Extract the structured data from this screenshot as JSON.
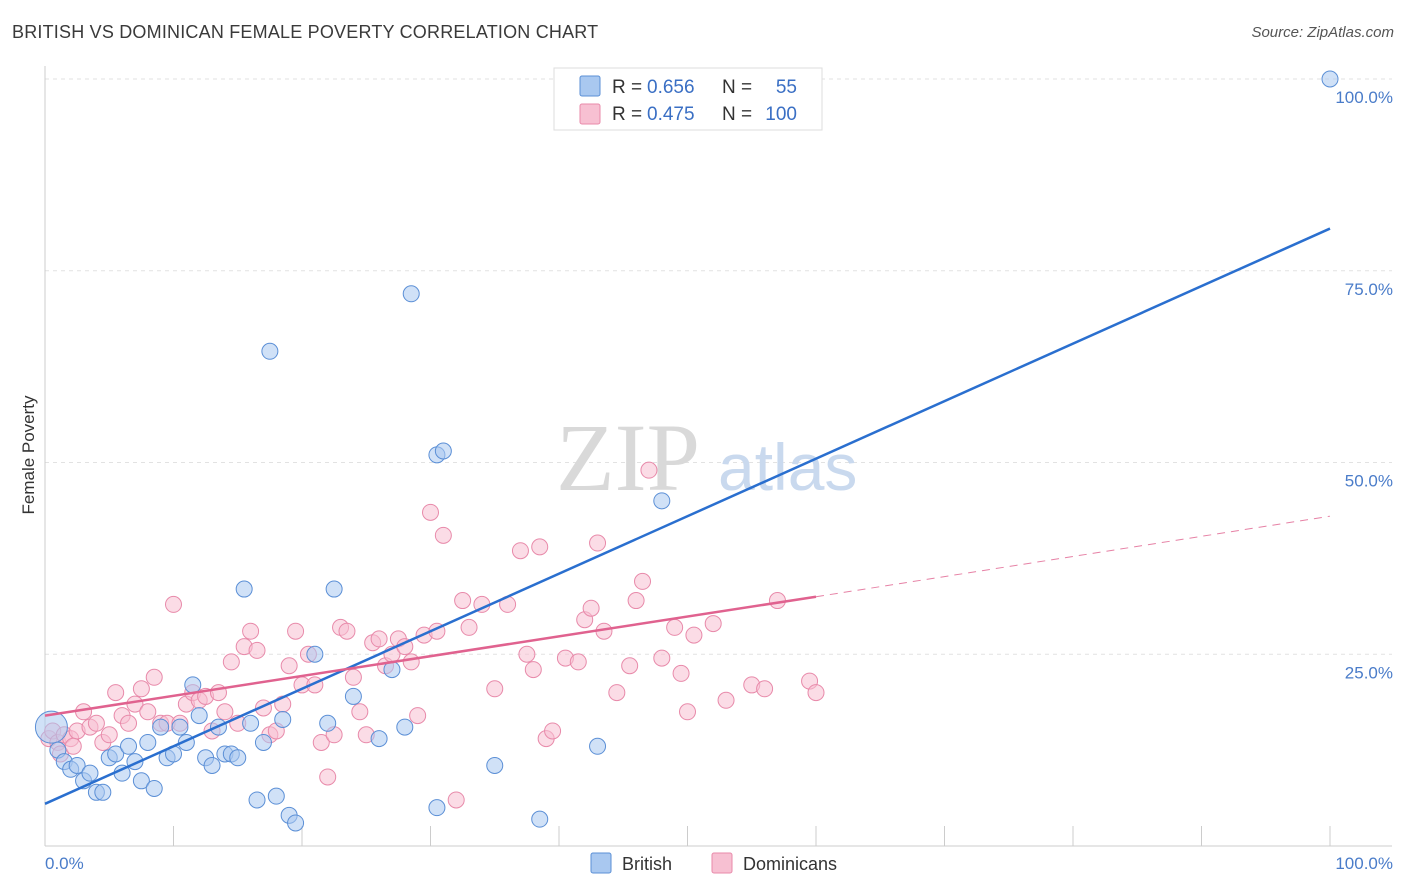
{
  "title": "BRITISH VS DOMINICAN FEMALE POVERTY CORRELATION CHART",
  "source": "Source: ZipAtlas.com",
  "watermark": {
    "zip": "ZIP",
    "atlas": "atlas"
  },
  "legend": {
    "british": {
      "r_label": "R =",
      "r_value": "0.656",
      "n_label": "N =",
      "n_value": "55"
    },
    "dominicans": {
      "r_label": "R =",
      "r_value": "0.475",
      "n_label": "N =",
      "n_value": "100"
    }
  },
  "bottom_legend": {
    "british": "British",
    "dominicans": "Dominicans"
  },
  "colors": {
    "british_fill": "#a9c8f0",
    "british_stroke": "#5b8fd6",
    "british_line": "#2a6fcf",
    "dominicans_fill": "#f7c0d2",
    "dominicans_stroke": "#e88aaa",
    "dominicans_line": "#e0628f",
    "tick_text": "#4a7cc9",
    "grid": "#e2e2e2"
  },
  "chart_data": {
    "type": "scatter",
    "title": "BRITISH VS DOMINICAN FEMALE POVERTY CORRELATION CHART",
    "xlabel": "",
    "ylabel": "Female Poverty",
    "xlim": [
      0,
      100
    ],
    "ylim": [
      0,
      100
    ],
    "x_tick_labels": [
      "0.0%",
      "100.0%"
    ],
    "y_tick_labels": [
      "25.0%",
      "50.0%",
      "75.0%",
      "100.0%"
    ],
    "y_ticks": [
      25,
      50,
      75,
      100
    ],
    "grid": true,
    "legend_position": "top-center",
    "series": [
      {
        "name": "British",
        "R": 0.656,
        "N": 55,
        "trend": {
          "x": [
            0,
            100
          ],
          "y": [
            5.5,
            80.5
          ],
          "style": "solid"
        },
        "points": [
          [
            0.5,
            15.5
          ],
          [
            1,
            12.5
          ],
          [
            1.5,
            11
          ],
          [
            2,
            10
          ],
          [
            2.5,
            10.5
          ],
          [
            3,
            8.5
          ],
          [
            3.5,
            9.5
          ],
          [
            4,
            7
          ],
          [
            4.5,
            7
          ],
          [
            5,
            11.5
          ],
          [
            5.5,
            12
          ],
          [
            6,
            9.5
          ],
          [
            6.5,
            13
          ],
          [
            7,
            11
          ],
          [
            7.5,
            8.5
          ],
          [
            8,
            13.5
          ],
          [
            8.5,
            7.5
          ],
          [
            9,
            15.5
          ],
          [
            9.5,
            11.5
          ],
          [
            10,
            12
          ],
          [
            10.5,
            15.5
          ],
          [
            11,
            13.5
          ],
          [
            11.5,
            21
          ],
          [
            12,
            17
          ],
          [
            12.5,
            11.5
          ],
          [
            13,
            10.5
          ],
          [
            13.5,
            15.5
          ],
          [
            14,
            12
          ],
          [
            14.5,
            12
          ],
          [
            15,
            11.5
          ],
          [
            15.5,
            33.5
          ],
          [
            16,
            16
          ],
          [
            16.5,
            6
          ],
          [
            17,
            13.5
          ],
          [
            17.5,
            64.5
          ],
          [
            18,
            6.5
          ],
          [
            18.5,
            16.5
          ],
          [
            19,
            4
          ],
          [
            19.5,
            3
          ],
          [
            21,
            25
          ],
          [
            22,
            16
          ],
          [
            22.5,
            33.5
          ],
          [
            24,
            19.5
          ],
          [
            26,
            14
          ],
          [
            27,
            23
          ],
          [
            28,
            15.5
          ],
          [
            28.5,
            72
          ],
          [
            30.5,
            5
          ],
          [
            30.5,
            51
          ],
          [
            31,
            51.5
          ],
          [
            35,
            10.5
          ],
          [
            38.5,
            3.5
          ],
          [
            43,
            13
          ],
          [
            48,
            45
          ],
          [
            100,
            100
          ]
        ]
      },
      {
        "name": "Dominicans",
        "R": 0.475,
        "N": 100,
        "trend": {
          "x": [
            0,
            60
          ],
          "y": [
            17,
            32.5
          ],
          "style": "solid",
          "extended_x": [
            60,
            100
          ],
          "extended_y": [
            32.5,
            43
          ],
          "extended_style": "dashed"
        },
        "points": [
          [
            0.3,
            14
          ],
          [
            0.6,
            15
          ],
          [
            1,
            13.5
          ],
          [
            1.5,
            14.5
          ],
          [
            2,
            14
          ],
          [
            2.5,
            15
          ],
          [
            3,
            17.5
          ],
          [
            3.5,
            15.5
          ],
          [
            4,
            16
          ],
          [
            4.5,
            13.5
          ],
          [
            5,
            14.5
          ],
          [
            5.5,
            20
          ],
          [
            6,
            17
          ],
          [
            6.5,
            16
          ],
          [
            7,
            18.5
          ],
          [
            7.5,
            20.5
          ],
          [
            8,
            17.5
          ],
          [
            8.5,
            22
          ],
          [
            9,
            16
          ],
          [
            9.5,
            16
          ],
          [
            10,
            31.5
          ],
          [
            10.5,
            16
          ],
          [
            11,
            18.5
          ],
          [
            11.5,
            20
          ],
          [
            12,
            19
          ],
          [
            12.5,
            19.5
          ],
          [
            13,
            15
          ],
          [
            13.5,
            20
          ],
          [
            14,
            17.5
          ],
          [
            14.5,
            24
          ],
          [
            15,
            16
          ],
          [
            15.5,
            26
          ],
          [
            16,
            28
          ],
          [
            16.5,
            25.5
          ],
          [
            17,
            18
          ],
          [
            17.5,
            14.5
          ],
          [
            18,
            15
          ],
          [
            18.5,
            18.5
          ],
          [
            19,
            23.5
          ],
          [
            19.5,
            28
          ],
          [
            20,
            21
          ],
          [
            20.5,
            25
          ],
          [
            21,
            21
          ],
          [
            21.5,
            13.5
          ],
          [
            22,
            9
          ],
          [
            22.5,
            14.5
          ],
          [
            23,
            28.5
          ],
          [
            23.5,
            28
          ],
          [
            24,
            22
          ],
          [
            24.5,
            17.5
          ],
          [
            25,
            14.5
          ],
          [
            25.5,
            26.5
          ],
          [
            26,
            27
          ],
          [
            26.5,
            23.5
          ],
          [
            27,
            25
          ],
          [
            27.5,
            27
          ],
          [
            28,
            26
          ],
          [
            28.5,
            24
          ],
          [
            29,
            17
          ],
          [
            29.5,
            27.5
          ],
          [
            30,
            43.5
          ],
          [
            30.5,
            28
          ],
          [
            31,
            40.5
          ],
          [
            32,
            6
          ],
          [
            32.5,
            32
          ],
          [
            33,
            28.5
          ],
          [
            34,
            31.5
          ],
          [
            35,
            20.5
          ],
          [
            36,
            31.5
          ],
          [
            37,
            38.5
          ],
          [
            37.5,
            25
          ],
          [
            38,
            23
          ],
          [
            38.5,
            39
          ],
          [
            39,
            14
          ],
          [
            39.5,
            15
          ],
          [
            40.5,
            24.5
          ],
          [
            41.5,
            24
          ],
          [
            42,
            29.5
          ],
          [
            42.5,
            31
          ],
          [
            43,
            39.5
          ],
          [
            43.5,
            28
          ],
          [
            44.5,
            20
          ],
          [
            45.5,
            23.5
          ],
          [
            46,
            32
          ],
          [
            46.5,
            34.5
          ],
          [
            47,
            49
          ],
          [
            48,
            24.5
          ],
          [
            49,
            28.5
          ],
          [
            49.5,
            22.5
          ],
          [
            50,
            17.5
          ],
          [
            50.5,
            27.5
          ],
          [
            52,
            29
          ],
          [
            53,
            19
          ],
          [
            55,
            21
          ],
          [
            56,
            20.5
          ],
          [
            57,
            32
          ],
          [
            59.5,
            21.5
          ],
          [
            60,
            20
          ],
          [
            1.2,
            12
          ],
          [
            2.2,
            13
          ]
        ]
      }
    ]
  }
}
